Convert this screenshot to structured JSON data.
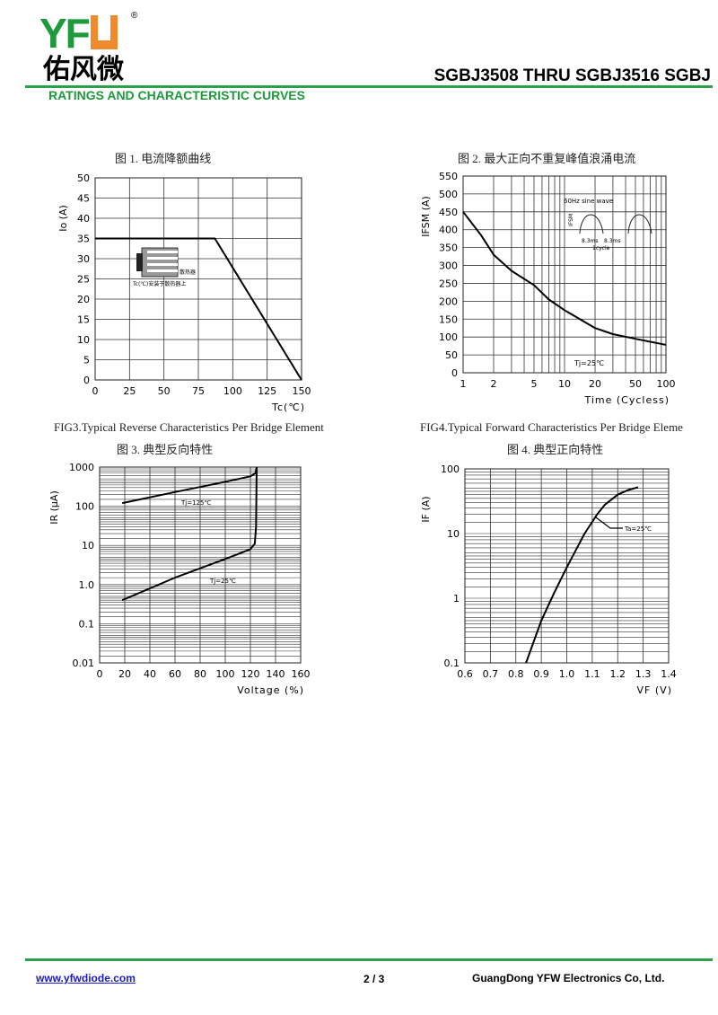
{
  "header": {
    "logo_text": "YFW",
    "logo_cn": "佑风微",
    "registered": "®",
    "doc_title": "SGBJ3508 THRU SGBJ3516  SGBJ",
    "section": "RATINGS AND CHARACTERISTIC CURVES"
  },
  "colors": {
    "brand_green": "#1e9a3c",
    "brand_orange": "#f08a2c",
    "link_blue": "#1a1acc"
  },
  "footer": {
    "url": "www.yfwdiode.com",
    "page": "2 / 3",
    "company": "GuangDong YFW Electronics Co, Ltd."
  },
  "chart_data": [
    {
      "id": "fig1",
      "type": "line",
      "caption_en": "",
      "title": "图 1.    电流降额曲线",
      "xlabel": "Tc(℃)",
      "ylabel": "Io (A)",
      "xlim": [
        0,
        150
      ],
      "ylim": [
        0,
        50
      ],
      "xscale": "linear",
      "yscale": "linear",
      "xticks": [
        0,
        25,
        50,
        75,
        100,
        125,
        150
      ],
      "yticks": [
        0,
        5,
        10,
        15,
        20,
        25,
        30,
        35,
        40,
        45,
        50
      ],
      "grid": true,
      "series": [
        {
          "points": [
            [
              0,
              35
            ],
            [
              87,
              35
            ],
            [
              150,
              0
            ]
          ]
        }
      ],
      "annotations": [
        "散热器",
        "Tc(℃)安装于散热器上"
      ]
    },
    {
      "id": "fig2",
      "type": "line",
      "caption_en": "",
      "title": "图 2.    最大正向不重复峰值浪涌电流",
      "xlabel": "Time (Cycless)",
      "ylabel": "IFSM (A)",
      "xlim": [
        1,
        100
      ],
      "ylim": [
        0,
        550
      ],
      "xscale": "log",
      "yscale": "linear",
      "xticks": [
        1,
        2,
        5,
        10,
        20,
        50,
        100
      ],
      "yticks": [
        0,
        50,
        100,
        150,
        200,
        250,
        300,
        350,
        400,
        450,
        500,
        550
      ],
      "grid": true,
      "series": [
        {
          "points": [
            [
              1,
              450
            ],
            [
              1.5,
              385
            ],
            [
              2,
              330
            ],
            [
              3,
              285
            ],
            [
              5,
              245
            ],
            [
              7,
              205
            ],
            [
              10,
              175
            ],
            [
              20,
              125
            ],
            [
              30,
              108
            ],
            [
              50,
              95
            ],
            [
              100,
              78
            ]
          ]
        }
      ],
      "annotations": [
        "Tj=25℃",
        "60Hz  sine wave",
        "IFSM",
        "8.3ms",
        "8.3ms",
        "1cycle"
      ]
    },
    {
      "id": "fig3",
      "type": "line",
      "caption_en": "FIG3.Typical Reverse Characteristics Per Bridge Element",
      "title": "图 3.    典型反向特性",
      "xlabel": "Voltage (%)",
      "ylabel": "IR (μA)",
      "xlim": [
        0,
        160
      ],
      "ylim": [
        0.01,
        1000
      ],
      "xscale": "linear",
      "yscale": "log",
      "xticks": [
        0,
        20,
        40,
        60,
        80,
        100,
        120,
        140,
        160
      ],
      "yticks": [
        0.01,
        0.1,
        1.0,
        10,
        100,
        1000
      ],
      "ytick_labels": [
        "0.01",
        "0.1",
        "1.0",
        "10",
        "100",
        "1000"
      ],
      "grid": true,
      "series": [
        {
          "name": "Tj=125℃",
          "points": [
            [
              18,
              120
            ],
            [
              60,
              230
            ],
            [
              100,
              420
            ],
            [
              120,
              580
            ],
            [
              124,
              700
            ],
            [
              125,
              1000
            ]
          ]
        },
        {
          "name": "Tj=25℃",
          "points": [
            [
              18,
              0.4
            ],
            [
              60,
              1.5
            ],
            [
              100,
              4.5
            ],
            [
              120,
              8
            ],
            [
              123.5,
              11
            ],
            [
              124.5,
              30
            ],
            [
              125,
              1000
            ]
          ]
        }
      ]
    },
    {
      "id": "fig4",
      "type": "line",
      "caption_en": "FIG4.Typical Forward Characteristics Per Bridge Eleme",
      "title": "图 4.    典型正向特性",
      "xlabel": "VF (V)",
      "ylabel": "IF (A)",
      "xlim": [
        0.6,
        1.4
      ],
      "ylim": [
        0.1,
        100
      ],
      "xscale": "linear",
      "yscale": "log",
      "xticks": [
        0.6,
        0.7,
        0.8,
        0.9,
        1.0,
        1.1,
        1.2,
        1.3,
        1.4
      ],
      "xtick_labels": [
        "0.6",
        "0.7",
        "0.8",
        "0.9",
        "1.0",
        "1.1",
        "1.2",
        "1.3",
        "1.4"
      ],
      "yticks": [
        0.1,
        1,
        10,
        100
      ],
      "ytick_labels": [
        "0.1",
        "1",
        "10",
        "100"
      ],
      "grid": true,
      "series": [
        {
          "name": "Ta=25℃",
          "points": [
            [
              0.84,
              0.1
            ],
            [
              0.9,
              0.45
            ],
            [
              0.95,
              1.2
            ],
            [
              1.0,
              3
            ],
            [
              1.07,
              10
            ],
            [
              1.12,
              20
            ],
            [
              1.15,
              28
            ],
            [
              1.2,
              40
            ],
            [
              1.24,
              47
            ],
            [
              1.28,
              52
            ]
          ]
        }
      ]
    }
  ]
}
